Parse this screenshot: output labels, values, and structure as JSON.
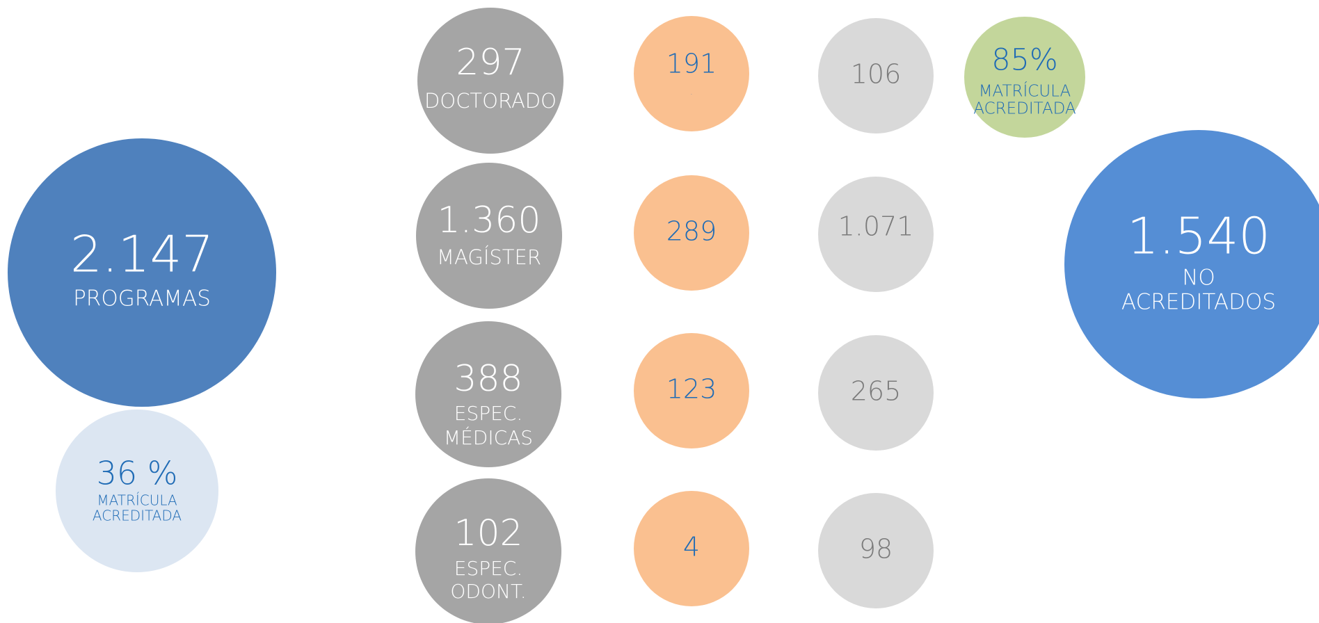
{
  "circles": [
    {
      "lines": [
        "2.147",
        "PROGRAMAS"
      ]
    },
    {
      "lines": [
        "36 %",
        "MATRÍCULA",
        "ACREDITADA"
      ]
    },
    {
      "lines": [
        "297",
        "DOCTORADO"
      ]
    },
    {
      "lines": [
        "1.360",
        "MAGÍSTER"
      ]
    },
    {
      "lines": [
        "388",
        "ESPEC.",
        "MÉDICAS"
      ]
    },
    {
      "lines": [
        "102",
        "ESPEC.",
        "ODONT."
      ]
    },
    {
      "lines": [
        "191",
        "."
      ]
    },
    {
      "lines": [
        "289"
      ]
    },
    {
      "lines": [
        "123"
      ]
    },
    {
      "lines": [
        "4"
      ]
    },
    {
      "lines": [
        "106"
      ]
    },
    {
      "lines": [
        "1.071"
      ]
    },
    {
      "lines": [
        "265"
      ]
    },
    {
      "lines": [
        "98"
      ]
    },
    {
      "lines": [
        "85%",
        "MATRÍCULA",
        "ACREDITADA"
      ]
    },
    {
      "lines": [
        "1.540",
        "NO",
        "ACREDITADOS"
      ]
    }
  ]
}
